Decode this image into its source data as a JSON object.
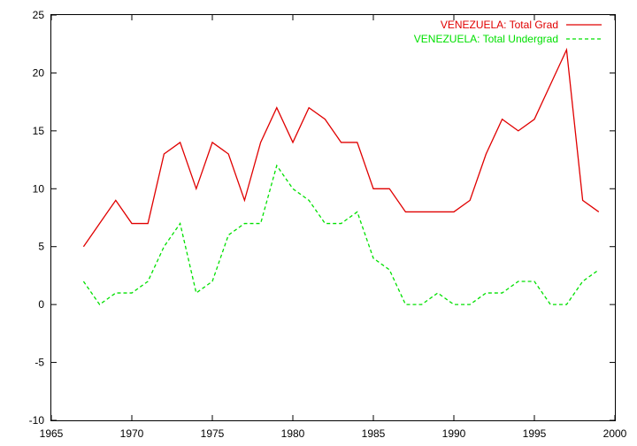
{
  "chart_data": {
    "type": "line",
    "title": "",
    "xlabel": "",
    "ylabel": "",
    "xlim": [
      1965,
      2000
    ],
    "ylim": [
      -10,
      25
    ],
    "x_ticks": [
      1965,
      1970,
      1975,
      1980,
      1985,
      1990,
      1995,
      2000
    ],
    "y_ticks": [
      -10,
      -5,
      0,
      5,
      10,
      15,
      20,
      25
    ],
    "grid": false,
    "legend_position": "top-right",
    "x": [
      1967,
      1968,
      1969,
      1970,
      1971,
      1972,
      1973,
      1974,
      1975,
      1976,
      1977,
      1978,
      1979,
      1980,
      1981,
      1982,
      1983,
      1984,
      1985,
      1986,
      1987,
      1988,
      1989,
      1990,
      1991,
      1992,
      1993,
      1994,
      1995,
      1996,
      1997,
      1998,
      1999
    ],
    "series": [
      {
        "name": "VENEZUELA: Total Grad",
        "color": "#e00000",
        "dash": "solid",
        "values": [
          5,
          7,
          9,
          7,
          7,
          13,
          14,
          10,
          14,
          13,
          9,
          14,
          17,
          14,
          17,
          16,
          14,
          14,
          10,
          10,
          8,
          8,
          8,
          8,
          9,
          13,
          16,
          15,
          16,
          19,
          22,
          9,
          8
        ]
      },
      {
        "name": "VENEZUELA: Total Undergrad",
        "color": "#00e000",
        "dash": "dashed",
        "values": [
          2,
          0,
          1,
          1,
          2,
          5,
          7,
          1,
          2,
          6,
          7,
          7,
          12,
          10,
          9,
          7,
          7,
          8,
          4,
          3,
          0,
          0,
          1,
          0,
          0,
          1,
          1,
          2,
          2,
          0,
          0,
          2,
          3
        ]
      }
    ]
  }
}
